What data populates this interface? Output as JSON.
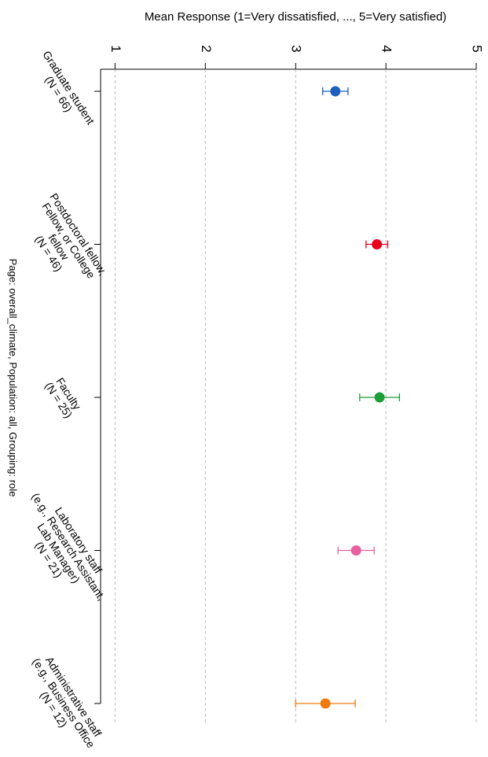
{
  "chart_data": {
    "type": "dot_errorbar",
    "title": "Mean Response (1=Very dissatisfied, ..., 5=Very satisfied)",
    "side_note": "Page: overall_climate, Population: all, Grouping: role",
    "categories": [
      [
        "Graduate student",
        "(N = 66)"
      ],
      [
        "Postdoctoral fellow,",
        "Fellow, or College",
        "fellow",
        "(N = 46)"
      ],
      [
        "Faculty",
        "(N = 25)"
      ],
      [
        "Laboratory staff",
        "(e.g., Research Assistant,",
        "Lab Manager)",
        "(N = 21)"
      ],
      [
        "Administrative staff",
        "(e.g., Business Office",
        "(N = 12)"
      ]
    ],
    "colors": [
      "#1f5fbf",
      "#e8001c",
      "#1e9e3a",
      "#e8609e",
      "#f07a10"
    ],
    "values": [
      3.44,
      3.9,
      3.93,
      3.67,
      3.33
    ],
    "errors": [
      0.14,
      0.12,
      0.22,
      0.2,
      0.33
    ],
    "xlim": [
      0.84,
      5
    ],
    "xticks": [
      1,
      2,
      3,
      4,
      5
    ],
    "grid": true
  }
}
